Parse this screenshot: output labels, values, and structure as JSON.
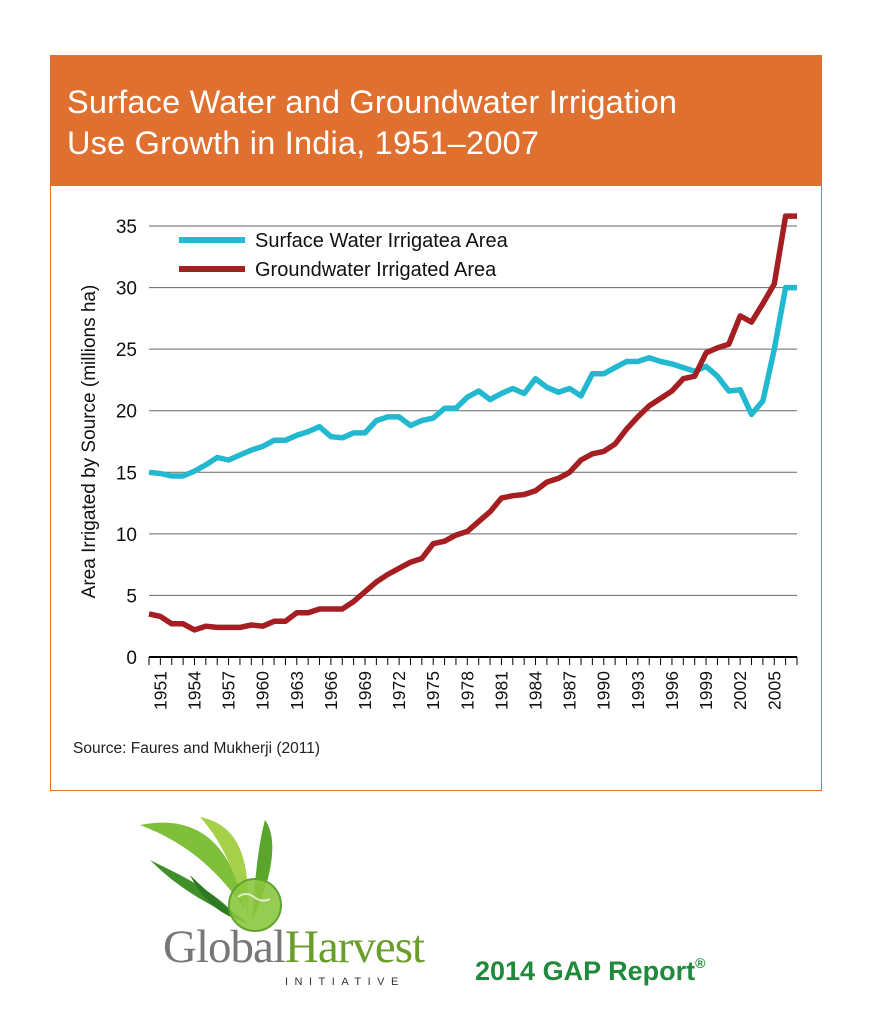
{
  "header": {
    "title": "Surface Water and Groundwater Irrigation\nUse Growth in India, 1951–2007"
  },
  "source": {
    "label": "Source:",
    "text": "Faures and Mukherji (2011)"
  },
  "logo": {
    "word1": "Global",
    "word2": "Harvest",
    "sub": "INITIATIVE"
  },
  "report": {
    "text": "2014 GAP Report",
    "mark": "®"
  },
  "colors": {
    "header_bg": "#e07030",
    "surface": "#22b8cf",
    "ground": "#a51e22"
  },
  "chart_data": {
    "type": "line",
    "title": "Surface Water and Groundwater Irrigation Use Growth in India, 1951–2007",
    "ylabel": "Area Irrigated by Source (millions ha)",
    "xlabel": "",
    "ylim": [
      0,
      35
    ],
    "yticks": [
      "0",
      "5",
      "10",
      "15",
      "20",
      "25",
      "30",
      "35"
    ],
    "xticks": [
      "1951",
      "1954",
      "1957",
      "1960",
      "1963",
      "1966",
      "1969",
      "1972",
      "1975",
      "1978",
      "1981",
      "1984",
      "1987",
      "1990",
      "1993",
      "1996",
      "1999",
      "2002",
      "2005"
    ],
    "grid": true,
    "legend": "top-left",
    "x": [
      1950,
      1951,
      1952,
      1953,
      1954,
      1955,
      1956,
      1957,
      1958,
      1959,
      1960,
      1961,
      1962,
      1963,
      1964,
      1965,
      1966,
      1967,
      1968,
      1969,
      1970,
      1971,
      1972,
      1973,
      1974,
      1975,
      1976,
      1977,
      1978,
      1979,
      1980,
      1981,
      1982,
      1983,
      1984,
      1985,
      1986,
      1987,
      1988,
      1989,
      1990,
      1991,
      1992,
      1993,
      1994,
      1995,
      1996,
      1997,
      1998,
      1999,
      2000,
      2001,
      2002,
      2003,
      2004,
      2005,
      2006,
      2007
    ],
    "series": [
      {
        "name": "Surface Water Irrigatea Area",
        "color": "#22b8cf",
        "values": [
          15.0,
          14.9,
          14.7,
          14.7,
          15.1,
          15.6,
          16.2,
          16.0,
          16.4,
          16.8,
          17.1,
          17.6,
          17.6,
          18.0,
          18.3,
          18.7,
          17.9,
          17.8,
          18.2,
          18.2,
          19.2,
          19.5,
          19.5,
          18.8,
          19.2,
          19.4,
          20.2,
          20.2,
          21.1,
          21.6,
          20.9,
          21.4,
          21.8,
          21.4,
          22.6,
          21.9,
          21.5,
          21.8,
          21.2,
          23.0,
          23.0,
          23.5,
          24.0,
          24.0,
          24.3,
          24.0,
          23.8,
          23.5,
          23.2,
          23.6,
          22.8,
          21.6,
          21.7,
          19.7,
          20.8,
          25.0,
          30.0,
          30.0
        ]
      },
      {
        "name": "Groundwater Irrigated Area",
        "color": "#a51e22",
        "values": [
          3.5,
          3.3,
          2.7,
          2.7,
          2.2,
          2.5,
          2.4,
          2.4,
          2.4,
          2.6,
          2.5,
          2.9,
          2.9,
          3.6,
          3.6,
          3.9,
          3.9,
          3.9,
          4.5,
          5.3,
          6.1,
          6.7,
          7.2,
          7.7,
          8.0,
          9.2,
          9.4,
          9.9,
          10.2,
          11.0,
          11.8,
          12.9,
          13.1,
          13.2,
          13.5,
          14.2,
          14.5,
          15.0,
          16.0,
          16.5,
          16.7,
          17.3,
          18.5,
          19.5,
          20.4,
          21.0,
          21.6,
          22.6,
          22.8,
          24.7,
          25.1,
          25.4,
          27.7,
          27.2,
          28.7,
          30.3,
          35.8,
          35.8
        ]
      }
    ]
  }
}
